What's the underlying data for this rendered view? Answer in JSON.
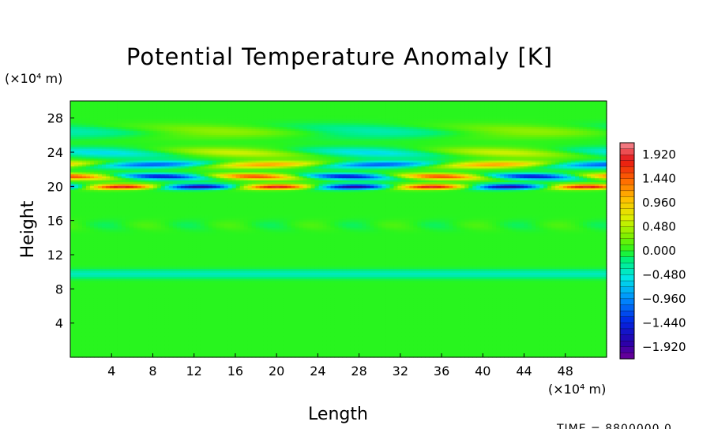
{
  "chart_data": {
    "type": "heatmap",
    "title": "Potential Temperature Anomaly [K]",
    "xlabel": "Length",
    "ylabel": "Height",
    "x_unit": "(×10⁴ m)",
    "y_unit": "(×10⁴ m)",
    "x_range": [
      0,
      52
    ],
    "y_range": [
      0,
      30
    ],
    "x_ticks": [
      4,
      8,
      12,
      16,
      20,
      24,
      28,
      32,
      36,
      40,
      44,
      48
    ],
    "y_ticks": [
      4,
      8,
      12,
      16,
      20,
      24,
      28
    ],
    "colorbar": {
      "min": -2.16,
      "max": 2.16,
      "labels": [
        1.92,
        1.44,
        0.96,
        0.48,
        0.0,
        -0.48,
        -0.96,
        -1.44,
        -1.92
      ],
      "label_text": [
        "1.920",
        "1.440",
        "0.960",
        "0.480",
        "0.000",
        "−0.480",
        "−0.960",
        "−1.440",
        "−1.920"
      ]
    },
    "field_features": [
      {
        "height": 20.0,
        "amplitude": 1.9,
        "wavelength": 15,
        "width": 0.3
      },
      {
        "height": 21.2,
        "amplitude": 1.6,
        "wavelength": 18,
        "width": 0.35
      },
      {
        "height": 22.6,
        "amplitude": 1.2,
        "wavelength": 22,
        "width": 0.4
      },
      {
        "height": 24.0,
        "amplitude": 0.6,
        "wavelength": 26,
        "width": 0.6
      },
      {
        "height": 26.5,
        "amplitude": 0.35,
        "wavelength": 30,
        "width": 0.8
      },
      {
        "height": 9.8,
        "amplitude": -0.4,
        "wavelength": 0,
        "width": 0.5
      },
      {
        "height": 15.5,
        "amplitude": 0.12,
        "wavelength": 8,
        "width": 0.6
      }
    ],
    "grid": false,
    "legend": "right"
  },
  "footer": {
    "time_label": "TIME = 8800000.0"
  }
}
